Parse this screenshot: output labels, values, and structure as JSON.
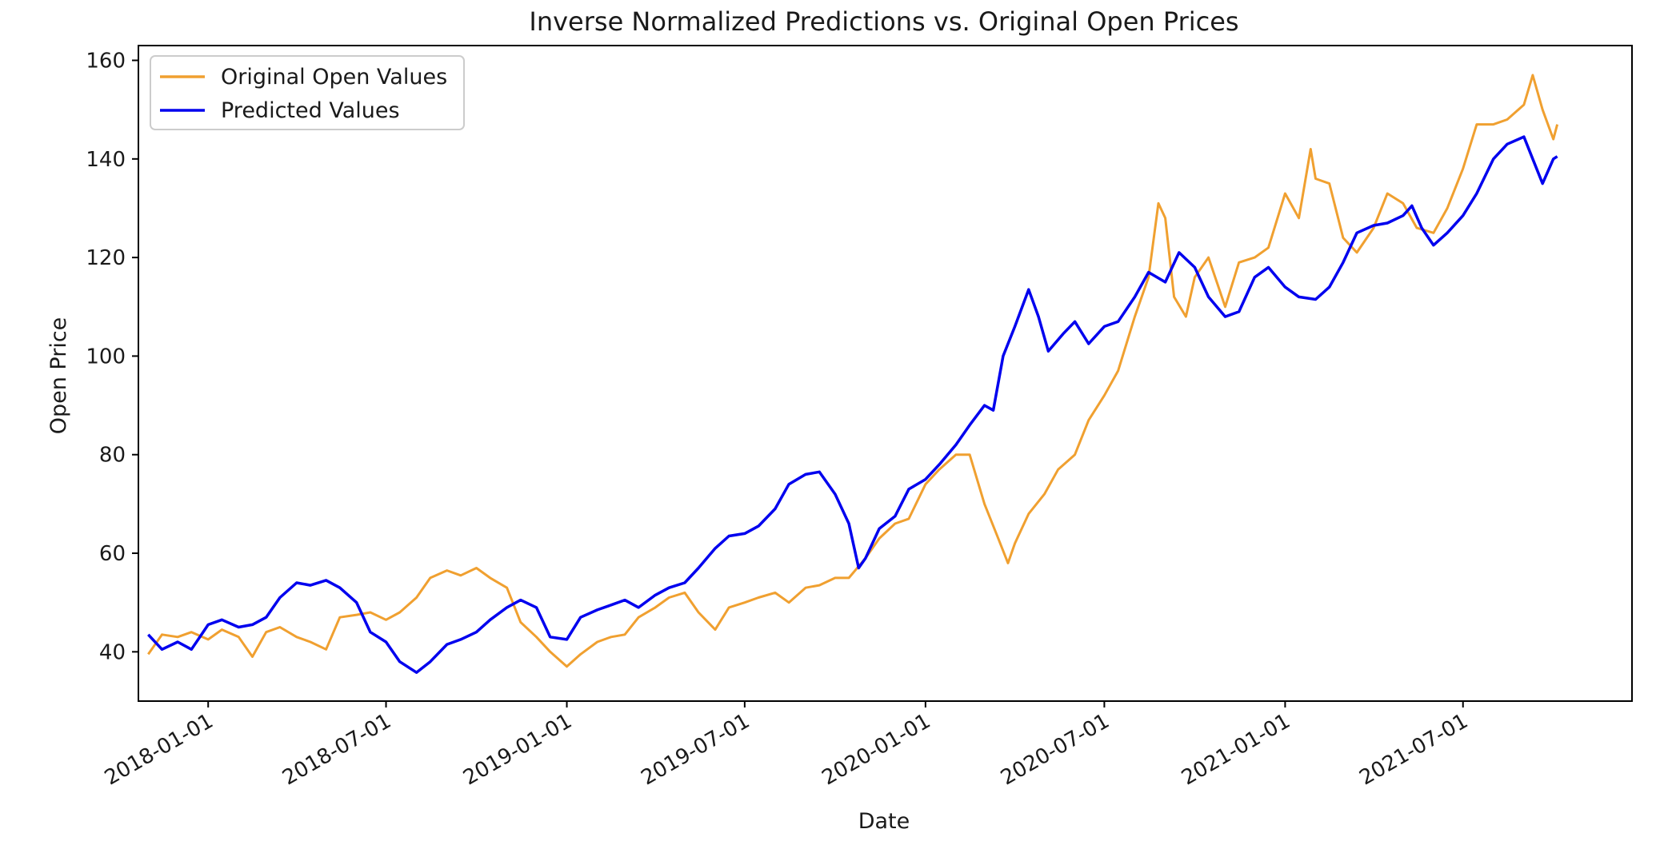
{
  "chart_data": {
    "type": "line",
    "title": "Inverse Normalized Predictions vs. Original Open Prices",
    "xlabel": "Date",
    "ylabel": "Open Price",
    "x_range": [
      "2017-10-22",
      "2021-12-20"
    ],
    "ylim": [
      30,
      163
    ],
    "yticks": [
      40,
      60,
      80,
      100,
      120,
      140,
      160
    ],
    "xticks": [
      "2018-01-01",
      "2018-07-01",
      "2019-01-01",
      "2019-07-01",
      "2020-01-01",
      "2020-07-01",
      "2021-01-01",
      "2021-07-01"
    ],
    "grid": false,
    "legend_position": "top-left",
    "series": [
      {
        "name": "Original Open Values",
        "color": "#f0a030",
        "points": [
          [
            "2017-11-01",
            39.5
          ],
          [
            "2017-11-15",
            43.5
          ],
          [
            "2017-12-01",
            43.0
          ],
          [
            "2017-12-15",
            44.0
          ],
          [
            "2018-01-01",
            42.5
          ],
          [
            "2018-01-15",
            44.5
          ],
          [
            "2018-02-01",
            43.0
          ],
          [
            "2018-02-15",
            39.0
          ],
          [
            "2018-03-01",
            44.0
          ],
          [
            "2018-03-15",
            45.0
          ],
          [
            "2018-04-01",
            43.0
          ],
          [
            "2018-04-15",
            42.0
          ],
          [
            "2018-05-01",
            40.5
          ],
          [
            "2018-05-15",
            47.0
          ],
          [
            "2018-06-01",
            47.5
          ],
          [
            "2018-06-15",
            48.0
          ],
          [
            "2018-07-01",
            46.5
          ],
          [
            "2018-07-15",
            48.0
          ],
          [
            "2018-08-01",
            51.0
          ],
          [
            "2018-08-15",
            55.0
          ],
          [
            "2018-09-01",
            56.5
          ],
          [
            "2018-09-15",
            55.5
          ],
          [
            "2018-10-01",
            57.0
          ],
          [
            "2018-10-15",
            55.0
          ],
          [
            "2018-11-01",
            53.0
          ],
          [
            "2018-11-15",
            46.0
          ],
          [
            "2018-12-01",
            43.0
          ],
          [
            "2018-12-15",
            40.0
          ],
          [
            "2019-01-01",
            37.0
          ],
          [
            "2019-01-15",
            39.5
          ],
          [
            "2019-02-01",
            42.0
          ],
          [
            "2019-02-15",
            43.0
          ],
          [
            "2019-03-01",
            43.5
          ],
          [
            "2019-03-15",
            47.0
          ],
          [
            "2019-04-01",
            49.0
          ],
          [
            "2019-04-15",
            51.0
          ],
          [
            "2019-05-01",
            52.0
          ],
          [
            "2019-05-15",
            48.0
          ],
          [
            "2019-06-01",
            44.5
          ],
          [
            "2019-06-15",
            49.0
          ],
          [
            "2019-07-01",
            50.0
          ],
          [
            "2019-07-15",
            51.0
          ],
          [
            "2019-08-01",
            52.0
          ],
          [
            "2019-08-15",
            50.0
          ],
          [
            "2019-09-01",
            53.0
          ],
          [
            "2019-09-15",
            53.5
          ],
          [
            "2019-10-01",
            55.0
          ],
          [
            "2019-10-15",
            55.0
          ],
          [
            "2019-11-01",
            59.0
          ],
          [
            "2019-11-15",
            63.0
          ],
          [
            "2019-12-01",
            66.0
          ],
          [
            "2019-12-15",
            67.0
          ],
          [
            "2020-01-01",
            74.0
          ],
          [
            "2020-01-15",
            77.0
          ],
          [
            "2020-02-01",
            80.0
          ],
          [
            "2020-02-15",
            80.0
          ],
          [
            "2020-03-01",
            70.0
          ],
          [
            "2020-03-15",
            63.0
          ],
          [
            "2020-03-25",
            58.0
          ],
          [
            "2020-04-01",
            62.0
          ],
          [
            "2020-04-15",
            68.0
          ],
          [
            "2020-05-01",
            72.0
          ],
          [
            "2020-05-15",
            77.0
          ],
          [
            "2020-06-01",
            80.0
          ],
          [
            "2020-06-15",
            87.0
          ],
          [
            "2020-07-01",
            92.0
          ],
          [
            "2020-07-15",
            97.0
          ],
          [
            "2020-08-01",
            108.0
          ],
          [
            "2020-08-15",
            116.0
          ],
          [
            "2020-08-25",
            131.0
          ],
          [
            "2020-09-01",
            128.0
          ],
          [
            "2020-09-10",
            112.0
          ],
          [
            "2020-09-22",
            108.0
          ],
          [
            "2020-10-01",
            116.0
          ],
          [
            "2020-10-15",
            120.0
          ],
          [
            "2020-11-01",
            110.0
          ],
          [
            "2020-11-15",
            119.0
          ],
          [
            "2020-12-01",
            120.0
          ],
          [
            "2020-12-15",
            122.0
          ],
          [
            "2021-01-01",
            133.0
          ],
          [
            "2021-01-15",
            128.0
          ],
          [
            "2021-01-27",
            142.0
          ],
          [
            "2021-02-01",
            136.0
          ],
          [
            "2021-02-15",
            135.0
          ],
          [
            "2021-03-01",
            124.0
          ],
          [
            "2021-03-15",
            121.0
          ],
          [
            "2021-04-01",
            126.0
          ],
          [
            "2021-04-15",
            133.0
          ],
          [
            "2021-05-01",
            131.0
          ],
          [
            "2021-05-15",
            126.0
          ],
          [
            "2021-06-01",
            125.0
          ],
          [
            "2021-06-15",
            130.0
          ],
          [
            "2021-07-01",
            138.0
          ],
          [
            "2021-07-15",
            147.0
          ],
          [
            "2021-08-01",
            147.0
          ],
          [
            "2021-08-15",
            148.0
          ],
          [
            "2021-09-01",
            151.0
          ],
          [
            "2021-09-10",
            157.0
          ],
          [
            "2021-09-20",
            150.0
          ],
          [
            "2021-10-01",
            144.0
          ],
          [
            "2021-10-05",
            147.0
          ]
        ]
      },
      {
        "name": "Predicted Values",
        "color": "#0000ee",
        "points": [
          [
            "2017-11-01",
            43.5
          ],
          [
            "2017-11-15",
            40.5
          ],
          [
            "2017-12-01",
            42.0
          ],
          [
            "2017-12-15",
            40.5
          ],
          [
            "2018-01-01",
            45.5
          ],
          [
            "2018-01-15",
            46.5
          ],
          [
            "2018-02-01",
            45.0
          ],
          [
            "2018-02-15",
            45.5
          ],
          [
            "2018-03-01",
            47.0
          ],
          [
            "2018-03-15",
            51.0
          ],
          [
            "2018-04-01",
            54.0
          ],
          [
            "2018-04-15",
            53.5
          ],
          [
            "2018-05-01",
            54.5
          ],
          [
            "2018-05-15",
            53.0
          ],
          [
            "2018-06-01",
            50.0
          ],
          [
            "2018-06-15",
            44.0
          ],
          [
            "2018-07-01",
            42.0
          ],
          [
            "2018-07-15",
            38.0
          ],
          [
            "2018-08-01",
            35.8
          ],
          [
            "2018-08-15",
            38.0
          ],
          [
            "2018-09-01",
            41.5
          ],
          [
            "2018-09-15",
            42.5
          ],
          [
            "2018-10-01",
            44.0
          ],
          [
            "2018-10-15",
            46.5
          ],
          [
            "2018-11-01",
            49.0
          ],
          [
            "2018-11-15",
            50.5
          ],
          [
            "2018-12-01",
            49.0
          ],
          [
            "2018-12-15",
            43.0
          ],
          [
            "2019-01-01",
            42.5
          ],
          [
            "2019-01-15",
            47.0
          ],
          [
            "2019-02-01",
            48.5
          ],
          [
            "2019-02-15",
            49.5
          ],
          [
            "2019-03-01",
            50.5
          ],
          [
            "2019-03-15",
            49.0
          ],
          [
            "2019-04-01",
            51.5
          ],
          [
            "2019-04-15",
            53.0
          ],
          [
            "2019-05-01",
            54.0
          ],
          [
            "2019-05-15",
            57.0
          ],
          [
            "2019-06-01",
            61.0
          ],
          [
            "2019-06-15",
            63.5
          ],
          [
            "2019-07-01",
            64.0
          ],
          [
            "2019-07-15",
            65.5
          ],
          [
            "2019-08-01",
            69.0
          ],
          [
            "2019-08-15",
            74.0
          ],
          [
            "2019-09-01",
            76.0
          ],
          [
            "2019-09-15",
            76.5
          ],
          [
            "2019-10-01",
            72.0
          ],
          [
            "2019-10-15",
            66.0
          ],
          [
            "2019-10-25",
            57.0
          ],
          [
            "2019-11-01",
            59.0
          ],
          [
            "2019-11-15",
            65.0
          ],
          [
            "2019-12-01",
            67.5
          ],
          [
            "2019-12-15",
            73.0
          ],
          [
            "2020-01-01",
            75.0
          ],
          [
            "2020-01-15",
            78.0
          ],
          [
            "2020-02-01",
            82.0
          ],
          [
            "2020-02-15",
            86.0
          ],
          [
            "2020-03-01",
            90.0
          ],
          [
            "2020-03-10",
            89.0
          ],
          [
            "2020-03-20",
            100.0
          ],
          [
            "2020-04-01",
            106.0
          ],
          [
            "2020-04-15",
            113.5
          ],
          [
            "2020-04-25",
            108.0
          ],
          [
            "2020-05-05",
            101.0
          ],
          [
            "2020-05-20",
            104.5
          ],
          [
            "2020-06-01",
            107.0
          ],
          [
            "2020-06-15",
            102.5
          ],
          [
            "2020-07-01",
            106.0
          ],
          [
            "2020-07-15",
            107.0
          ],
          [
            "2020-08-01",
            112.0
          ],
          [
            "2020-08-15",
            117.0
          ],
          [
            "2020-09-01",
            115.0
          ],
          [
            "2020-09-15",
            121.0
          ],
          [
            "2020-10-01",
            118.0
          ],
          [
            "2020-10-15",
            112.0
          ],
          [
            "2020-11-01",
            108.0
          ],
          [
            "2020-11-15",
            109.0
          ],
          [
            "2020-12-01",
            116.0
          ],
          [
            "2020-12-15",
            118.0
          ],
          [
            "2021-01-01",
            114.0
          ],
          [
            "2021-01-15",
            112.0
          ],
          [
            "2021-02-01",
            111.5
          ],
          [
            "2021-02-15",
            114.0
          ],
          [
            "2021-03-01",
            119.0
          ],
          [
            "2021-03-15",
            125.0
          ],
          [
            "2021-04-01",
            126.5
          ],
          [
            "2021-04-15",
            127.0
          ],
          [
            "2021-05-01",
            128.5
          ],
          [
            "2021-05-10",
            130.5
          ],
          [
            "2021-05-20",
            126.0
          ],
          [
            "2021-06-01",
            122.5
          ],
          [
            "2021-06-15",
            125.0
          ],
          [
            "2021-07-01",
            128.5
          ],
          [
            "2021-07-15",
            133.0
          ],
          [
            "2021-08-01",
            140.0
          ],
          [
            "2021-08-15",
            143.0
          ],
          [
            "2021-09-01",
            144.5
          ],
          [
            "2021-09-10",
            140.0
          ],
          [
            "2021-09-20",
            135.0
          ],
          [
            "2021-10-01",
            140.0
          ],
          [
            "2021-10-05",
            140.5
          ]
        ]
      }
    ]
  }
}
